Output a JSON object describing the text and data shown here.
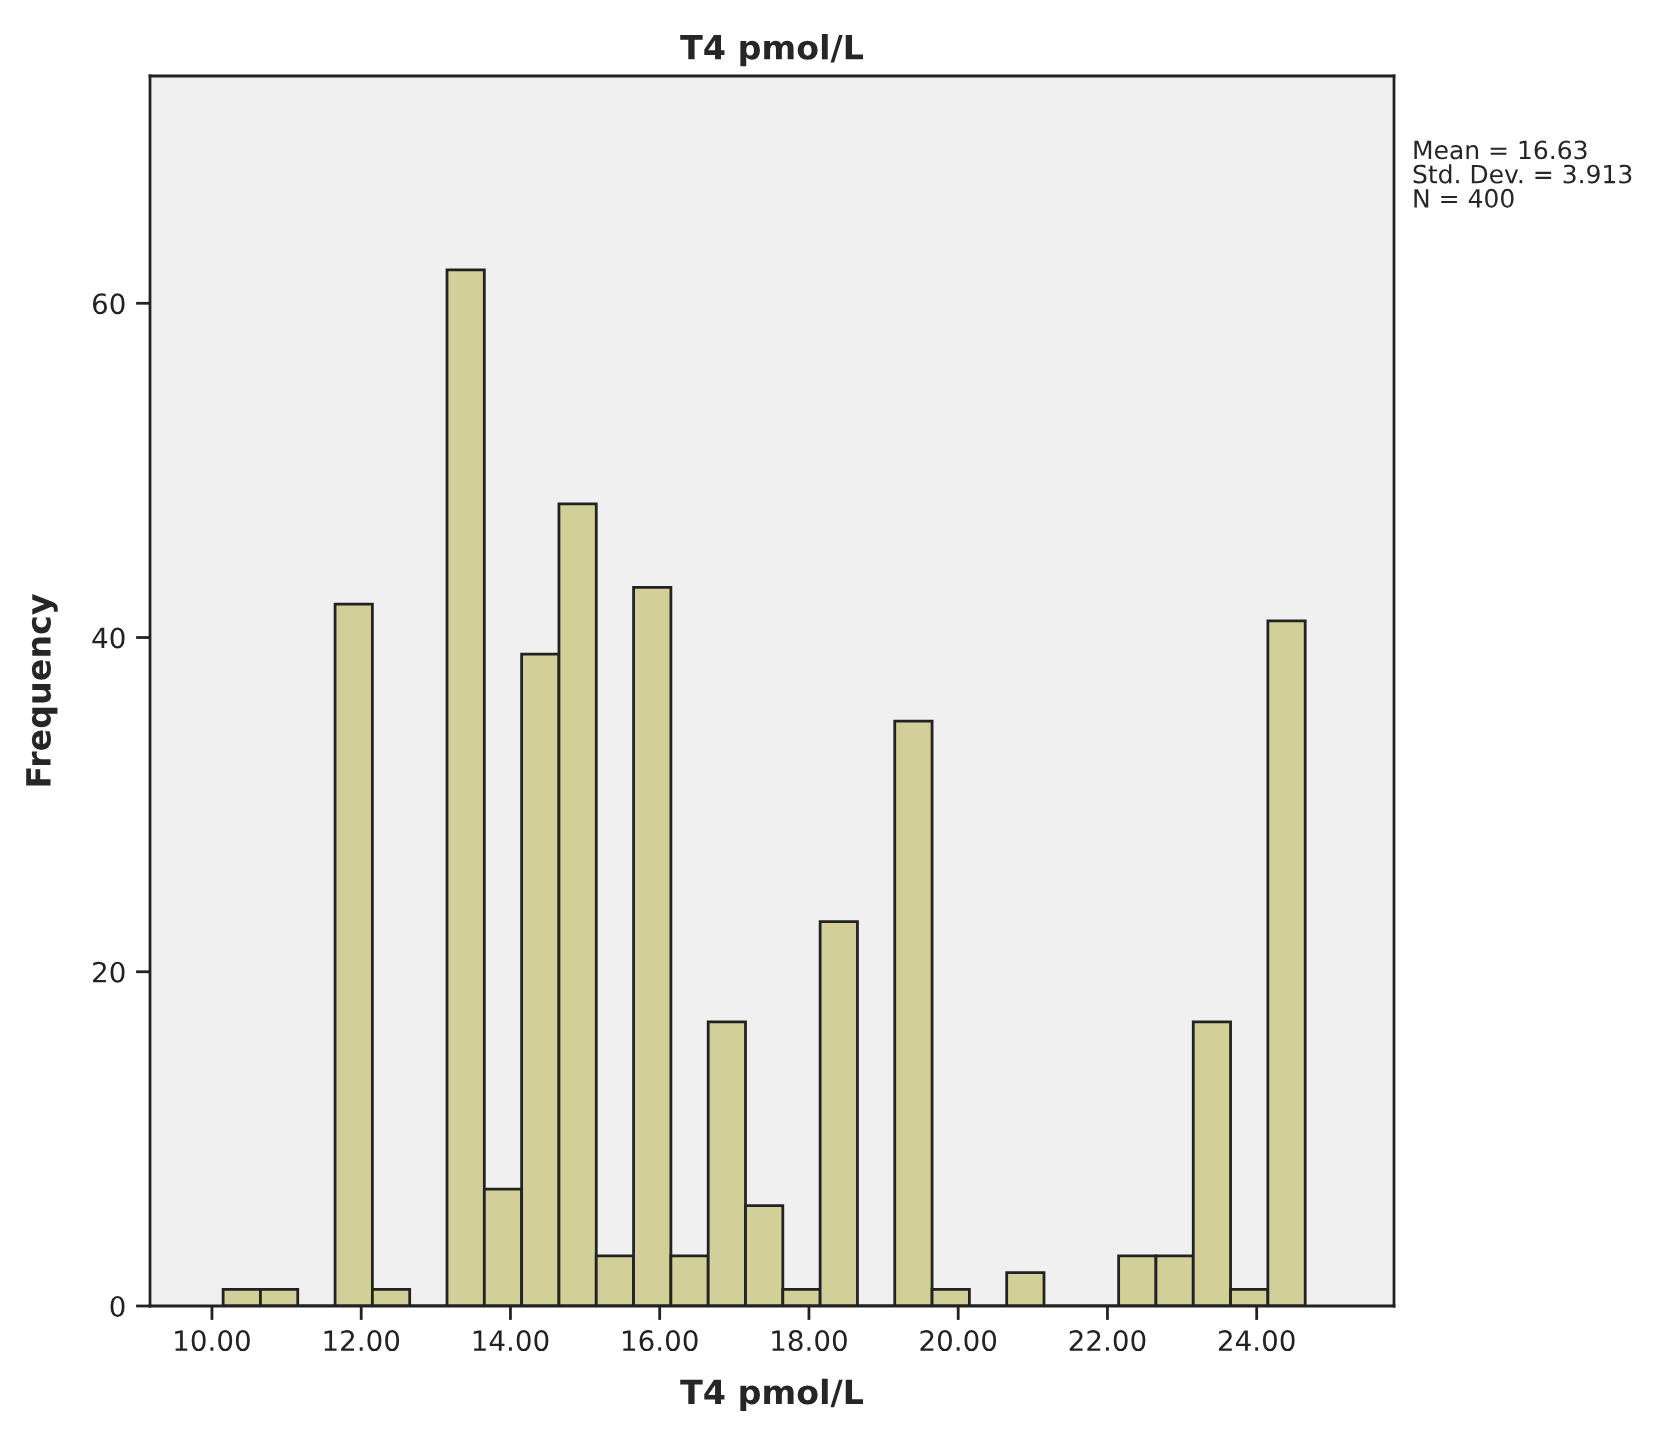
{
  "chart_data": {
    "type": "histogram",
    "title": "T4 pmol/L",
    "xlabel": "T4 pmol/L",
    "ylabel": "Frequency",
    "bins": [
      10.15,
      10.65,
      11.15,
      11.65,
      12.15,
      12.65,
      13.15,
      13.65,
      14.15,
      14.65,
      15.15,
      15.65,
      16.15,
      16.65,
      17.15,
      17.65,
      18.15,
      18.65,
      19.15,
      19.65,
      20.15,
      20.65,
      21.15,
      21.65,
      22.15,
      22.65,
      23.15,
      23.65,
      24.15,
      24.65
    ],
    "values": [
      1,
      1,
      0,
      42,
      1,
      0,
      62,
      7,
      39,
      48,
      3,
      43,
      3,
      17,
      6,
      1,
      23,
      0,
      35,
      1,
      0,
      2,
      0,
      0,
      3,
      3,
      17,
      1,
      41
    ],
    "color": "#d3cf98",
    "xlim": [
      9.17,
      25.84
    ],
    "ylim": [
      0,
      73.6
    ],
    "xticks": [
      {
        "value": 10,
        "label": "10.00"
      },
      {
        "value": 12,
        "label": "12.00"
      },
      {
        "value": 14,
        "label": "14.00"
      },
      {
        "value": 16,
        "label": "16.00"
      },
      {
        "value": 18,
        "label": "18.00"
      },
      {
        "value": 20,
        "label": "20.00"
      },
      {
        "value": 22,
        "label": "22.00"
      },
      {
        "value": 24,
        "label": "24.00"
      }
    ],
    "yticks": [
      0,
      20,
      40,
      60
    ],
    "annotations": [
      "Mean = 16.63\nStd. Dev. = 3.913\nN = 400"
    ],
    "grid": false
  }
}
